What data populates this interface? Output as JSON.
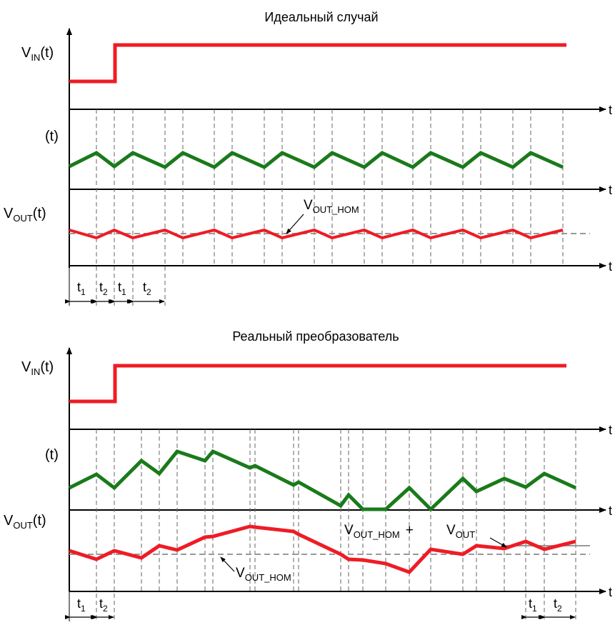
{
  "colors": {
    "input": "#ee1c25",
    "middle": "#1a7a1a",
    "output": "#ee1c25",
    "nominal": "#999999",
    "axis": "#000000",
    "guide": "#666666"
  },
  "ideal": {
    "title": "Идеальный случай",
    "vin_label": {
      "main": "V",
      "sub": "IN",
      "tail": "(t)"
    },
    "mid_label": "(t)",
    "vout_label": {
      "main": "V",
      "sub": "OUT",
      "tail": "(t)"
    },
    "axis_label": "t",
    "vout_nom": {
      "main": "V",
      "sub": "OUT_НОМ"
    },
    "intervals": [
      {
        "main": "t",
        "sub": "1"
      },
      {
        "main": "t",
        "sub": "2"
      },
      {
        "main": "t",
        "sub": "1"
      },
      {
        "main": "t",
        "sub": "2"
      }
    ]
  },
  "real": {
    "title": "Реальный преобразователь",
    "vin_label": {
      "main": "V",
      "sub": "IN",
      "tail": "(t)"
    },
    "mid_label": "(t)",
    "vout_label": {
      "main": "V",
      "sub": "OUT",
      "tail": "(t)"
    },
    "axis_label": "t",
    "vout_nom": {
      "main": "V",
      "sub": "OUT_НОМ"
    },
    "vout_nom_sum": {
      "main": "V",
      "sub": "OUT_НОМ",
      "plus": "+"
    },
    "vout": {
      "main": "V",
      "sub": "OUT"
    },
    "intervals_left": [
      {
        "main": "t",
        "sub": "1"
      },
      {
        "main": "t",
        "sub": "2"
      }
    ],
    "intervals_right": [
      {
        "main": "t",
        "sub": "1"
      },
      {
        "main": "t",
        "sub": "2"
      }
    ]
  }
}
